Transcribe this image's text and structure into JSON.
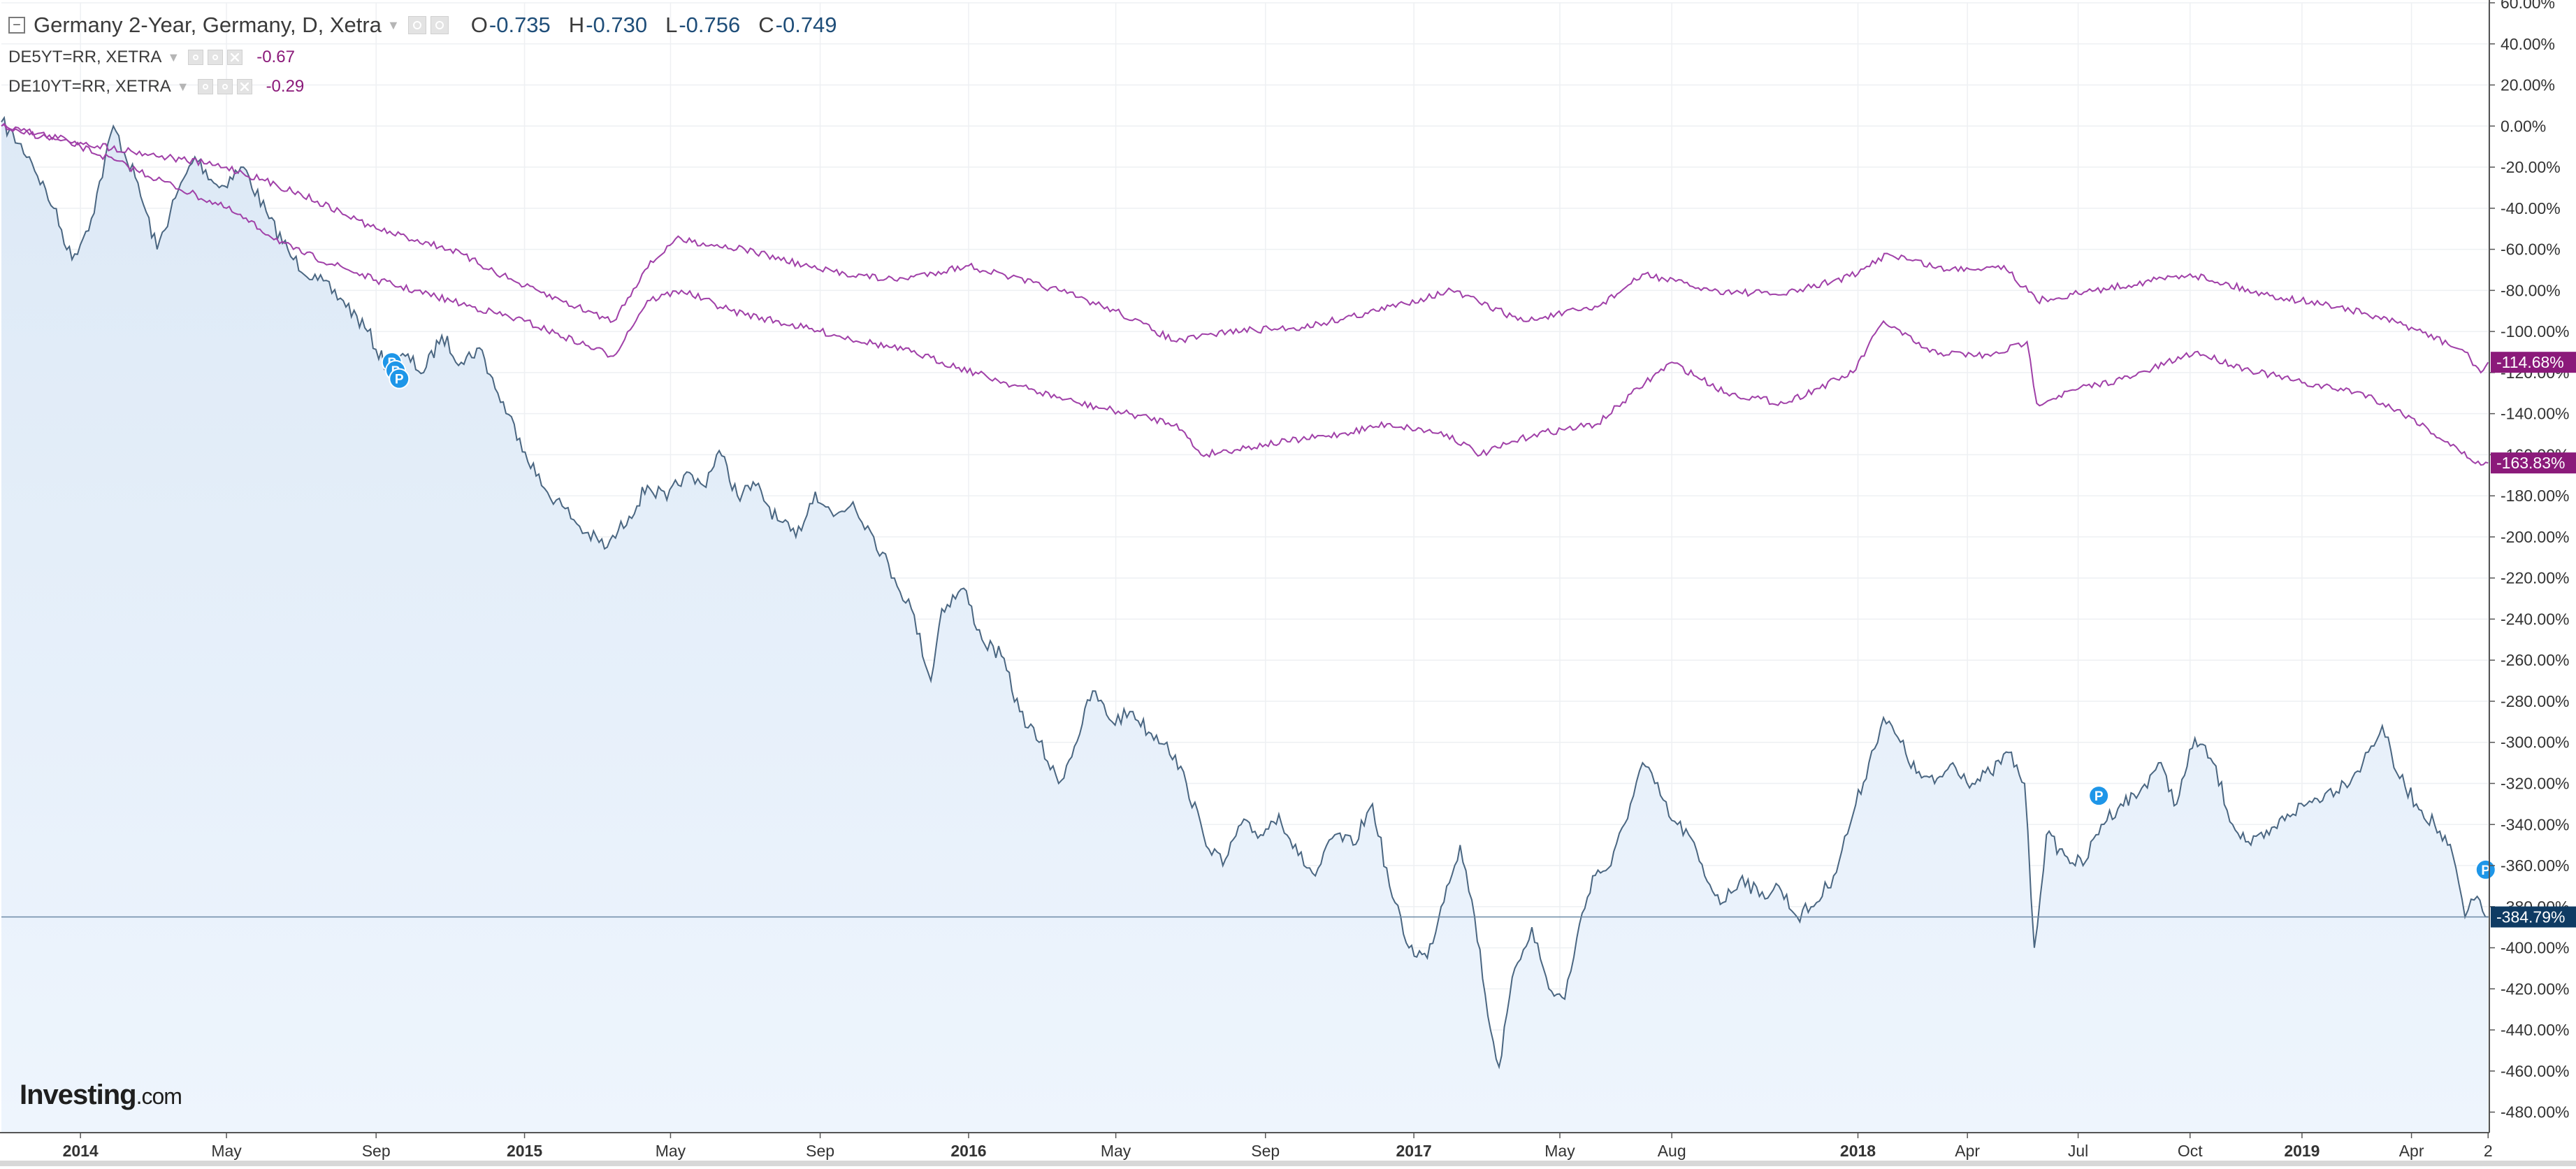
{
  "header": {
    "title": "Germany 2-Year, Germany, D, Xetra",
    "ohlc": [
      {
        "label": "O",
        "value": "-0.735"
      },
      {
        "label": "H",
        "value": "-0.730"
      },
      {
        "label": "L",
        "value": "-0.756"
      },
      {
        "label": "C",
        "value": "-0.749"
      }
    ]
  },
  "overlays": [
    {
      "name": "DE5YT=RR, XETRA",
      "value": "-0.67"
    },
    {
      "name": "DE10YT=RR, XETRA",
      "value": "-0.29"
    }
  ],
  "brand": {
    "name": "Investing",
    "suffix": ".com"
  },
  "colors": {
    "main": "#4a6681",
    "main_fill": "#dde9f6",
    "overlay": "#a040a8",
    "overlay_badge": "#8b1a7a",
    "main_badge": "#0f3b63",
    "marker": "#1e96e8"
  },
  "chart_data": {
    "type": "area",
    "xlabel": "",
    "ylabel": "",
    "ylim": [
      -490,
      60
    ],
    "yticks": [
      60,
      40,
      20,
      0,
      -20,
      -40,
      -60,
      -80,
      -100,
      -120,
      -140,
      -160,
      -180,
      -200,
      -220,
      -240,
      -260,
      -280,
      -300,
      -320,
      -340,
      -360,
      -380,
      -400,
      -420,
      -440,
      -460,
      -480
    ],
    "ytick_labels": [
      "60.00%",
      "40.00%",
      "20.00%",
      "0.00%",
      "-20.00%",
      "-40.00%",
      "-60.00%",
      "-80.00%",
      "-100.00%",
      "-120.00%",
      "-140.00%",
      "-160.00%",
      "-180.00%",
      "-200.00%",
      "-220.00%",
      "-240.00%",
      "-260.00%",
      "-280.00%",
      "-300.00%",
      "-320.00%",
      "-340.00%",
      "-360.00%",
      "-380.00%",
      "-400.00%",
      "-420.00%",
      "-440.00%",
      "-460.00%",
      "-480.00%"
    ],
    "x_range": [
      "2013-10-28",
      "2019-06-04"
    ],
    "xticks": [
      {
        "date": "2014-01-01",
        "label": "2014",
        "bold": true
      },
      {
        "date": "2014-05-01",
        "label": "May",
        "bold": false
      },
      {
        "date": "2014-09-01",
        "label": "Sep",
        "bold": false
      },
      {
        "date": "2015-01-01",
        "label": "2015",
        "bold": true
      },
      {
        "date": "2015-05-01",
        "label": "May",
        "bold": false
      },
      {
        "date": "2015-09-01",
        "label": "Sep",
        "bold": false
      },
      {
        "date": "2016-01-01",
        "label": "2016",
        "bold": true
      },
      {
        "date": "2016-05-01",
        "label": "May",
        "bold": false
      },
      {
        "date": "2016-09-01",
        "label": "Sep",
        "bold": false
      },
      {
        "date": "2017-01-01",
        "label": "2017",
        "bold": true
      },
      {
        "date": "2017-05-01",
        "label": "May",
        "bold": false
      },
      {
        "date": "2017-08-01",
        "label": "Aug",
        "bold": false
      },
      {
        "date": "2018-01-01",
        "label": "2018",
        "bold": true
      },
      {
        "date": "2018-04-01",
        "label": "Apr",
        "bold": false
      },
      {
        "date": "2018-07-01",
        "label": "Jul",
        "bold": false
      },
      {
        "date": "2018-10-01",
        "label": "Oct",
        "bold": false
      },
      {
        "date": "2019-01-01",
        "label": "2019",
        "bold": true
      },
      {
        "date": "2019-04-01",
        "label": "Apr",
        "bold": false
      },
      {
        "date": "2019-06-03",
        "label": "2",
        "bold": false
      }
    ],
    "grid": true,
    "series": [
      {
        "name": "Germany 2-Year, Germany, D, Xetra",
        "style": "area",
        "last_label": "-384.79%",
        "points": [
          [
            "2013-10-28",
            2
          ],
          [
            "2013-11-20",
            -15
          ],
          [
            "2013-12-10",
            -40
          ],
          [
            "2013-12-25",
            -65
          ],
          [
            "2014-01-10",
            -45
          ],
          [
            "2014-01-28",
            0
          ],
          [
            "2014-02-15",
            -25
          ],
          [
            "2014-03-05",
            -60
          ],
          [
            "2014-03-20",
            -35
          ],
          [
            "2014-04-05",
            -15
          ],
          [
            "2014-04-25",
            -30
          ],
          [
            "2014-05-15",
            -20
          ],
          [
            "2014-06-05",
            -45
          ],
          [
            "2014-06-25",
            -65
          ],
          [
            "2014-07-15",
            -75
          ],
          [
            "2014-08-05",
            -85
          ],
          [
            "2014-08-25",
            -100
          ],
          [
            "2014-09-10",
            -118
          ],
          [
            "2014-09-25",
            -112
          ],
          [
            "2014-10-10",
            -120
          ],
          [
            "2014-10-25",
            -102
          ],
          [
            "2014-11-10",
            -115
          ],
          [
            "2014-11-25",
            -108
          ],
          [
            "2014-12-10",
            -130
          ],
          [
            "2014-12-28",
            -152
          ],
          [
            "2015-01-15",
            -175
          ],
          [
            "2015-02-01",
            -185
          ],
          [
            "2015-02-20",
            -198
          ],
          [
            "2015-03-10",
            -205
          ],
          [
            "2015-03-28",
            -190
          ],
          [
            "2015-04-12",
            -175
          ],
          [
            "2015-04-28",
            -182
          ],
          [
            "2015-05-12",
            -170
          ],
          [
            "2015-05-28",
            -175
          ],
          [
            "2015-06-10",
            -158
          ],
          [
            "2015-06-25",
            -180
          ],
          [
            "2015-07-10",
            -175
          ],
          [
            "2015-07-28",
            -192
          ],
          [
            "2015-08-12",
            -200
          ],
          [
            "2015-08-28",
            -178
          ],
          [
            "2015-09-12",
            -190
          ],
          [
            "2015-09-28",
            -183
          ],
          [
            "2015-10-15",
            -200
          ],
          [
            "2015-11-01",
            -220
          ],
          [
            "2015-11-15",
            -235
          ],
          [
            "2015-12-01",
            -270
          ],
          [
            "2015-12-10",
            -235
          ],
          [
            "2015-12-28",
            -225
          ],
          [
            "2016-01-12",
            -250
          ],
          [
            "2016-01-28",
            -258
          ],
          [
            "2016-02-12",
            -285
          ],
          [
            "2016-02-28",
            -300
          ],
          [
            "2016-03-15",
            -320
          ],
          [
            "2016-03-28",
            -302
          ],
          [
            "2016-04-12",
            -275
          ],
          [
            "2016-04-28",
            -290
          ],
          [
            "2016-05-15",
            -285
          ],
          [
            "2016-05-28",
            -295
          ],
          [
            "2016-06-12",
            -300
          ],
          [
            "2016-06-28",
            -320
          ],
          [
            "2016-07-12",
            -345
          ],
          [
            "2016-07-28",
            -360
          ],
          [
            "2016-08-12",
            -340
          ],
          [
            "2016-08-28",
            -345
          ],
          [
            "2016-09-12",
            -335
          ],
          [
            "2016-09-28",
            -355
          ],
          [
            "2016-10-12",
            -365
          ],
          [
            "2016-10-28",
            -345
          ],
          [
            "2016-11-12",
            -350
          ],
          [
            "2016-11-28",
            -330
          ],
          [
            "2016-12-12",
            -370
          ],
          [
            "2016-12-28",
            -400
          ],
          [
            "2017-01-12",
            -405
          ],
          [
            "2017-01-28",
            -370
          ],
          [
            "2017-02-08",
            -350
          ],
          [
            "2017-02-20",
            -385
          ],
          [
            "2017-03-05",
            -440
          ],
          [
            "2017-03-12",
            -458
          ],
          [
            "2017-03-25",
            -410
          ],
          [
            "2017-04-08",
            -390
          ],
          [
            "2017-04-22",
            -420
          ],
          [
            "2017-05-05",
            -425
          ],
          [
            "2017-05-15",
            -395
          ],
          [
            "2017-05-28",
            -365
          ],
          [
            "2017-06-12",
            -360
          ],
          [
            "2017-06-28",
            -330
          ],
          [
            "2017-07-08",
            -310
          ],
          [
            "2017-07-18",
            -320
          ],
          [
            "2017-08-01",
            -338
          ],
          [
            "2017-08-15",
            -345
          ],
          [
            "2017-08-28",
            -365
          ],
          [
            "2017-09-12",
            -378
          ],
          [
            "2017-09-28",
            -365
          ],
          [
            "2017-10-12",
            -375
          ],
          [
            "2017-10-28",
            -370
          ],
          [
            "2017-11-12",
            -385
          ],
          [
            "2017-11-28",
            -378
          ],
          [
            "2017-12-12",
            -365
          ],
          [
            "2017-12-28",
            -335
          ],
          [
            "2018-01-10",
            -310
          ],
          [
            "2018-01-22",
            -288
          ],
          [
            "2018-02-05",
            -300
          ],
          [
            "2018-02-18",
            -315
          ],
          [
            "2018-03-05",
            -320
          ],
          [
            "2018-03-20",
            -310
          ],
          [
            "2018-04-05",
            -320
          ],
          [
            "2018-04-20",
            -315
          ],
          [
            "2018-05-05",
            -305
          ],
          [
            "2018-05-18",
            -320
          ],
          [
            "2018-05-26",
            -400
          ],
          [
            "2018-06-05",
            -345
          ],
          [
            "2018-06-20",
            -355
          ],
          [
            "2018-07-05",
            -360
          ],
          [
            "2018-07-20",
            -340
          ],
          [
            "2018-08-05",
            -330
          ],
          [
            "2018-08-20",
            -325
          ],
          [
            "2018-09-05",
            -310
          ],
          [
            "2018-09-20",
            -330
          ],
          [
            "2018-10-05",
            -298
          ],
          [
            "2018-10-20",
            -310
          ],
          [
            "2018-11-05",
            -340
          ],
          [
            "2018-11-20",
            -350
          ],
          [
            "2018-12-05",
            -345
          ],
          [
            "2018-12-20",
            -335
          ],
          [
            "2019-01-05",
            -330
          ],
          [
            "2019-01-20",
            -325
          ],
          [
            "2019-02-05",
            -320
          ],
          [
            "2019-02-20",
            -310
          ],
          [
            "2019-03-08",
            -292
          ],
          [
            "2019-03-20",
            -315
          ],
          [
            "2019-04-05",
            -330
          ],
          [
            "2019-04-20",
            -340
          ],
          [
            "2019-05-05",
            -355
          ],
          [
            "2019-05-15",
            -385
          ],
          [
            "2019-05-25",
            -375
          ],
          [
            "2019-06-03",
            -385
          ]
        ]
      },
      {
        "name": "DE5YT=RR, XETRA",
        "style": "line",
        "last_label": "-163.83%",
        "points": [
          [
            "2013-10-28",
            0
          ],
          [
            "2014-01-01",
            -10
          ],
          [
            "2014-05-01",
            -40
          ],
          [
            "2014-06-25",
            -60
          ],
          [
            "2014-09-01",
            -75
          ],
          [
            "2014-11-01",
            -85
          ],
          [
            "2015-01-01",
            -95
          ],
          [
            "2015-03-15",
            -112
          ],
          [
            "2015-04-12",
            -85
          ],
          [
            "2015-05-10",
            -80
          ],
          [
            "2015-06-20",
            -90
          ],
          [
            "2015-09-01",
            -100
          ],
          [
            "2015-11-15",
            -110
          ],
          [
            "2016-02-01",
            -125
          ],
          [
            "2016-04-01",
            -135
          ],
          [
            "2016-06-20",
            -145
          ],
          [
            "2016-07-10",
            -160
          ],
          [
            "2016-09-01",
            -155
          ],
          [
            "2016-11-01",
            -150
          ],
          [
            "2016-12-10",
            -145
          ],
          [
            "2017-01-28",
            -150
          ],
          [
            "2017-02-25",
            -160
          ],
          [
            "2017-04-10",
            -150
          ],
          [
            "2017-06-01",
            -145
          ],
          [
            "2017-07-10",
            -125
          ],
          [
            "2017-08-01",
            -115
          ],
          [
            "2017-09-15",
            -130
          ],
          [
            "2017-11-01",
            -135
          ],
          [
            "2017-12-28",
            -120
          ],
          [
            "2018-01-22",
            -95
          ],
          [
            "2018-03-01",
            -110
          ],
          [
            "2018-04-20",
            -112
          ],
          [
            "2018-05-20",
            -105
          ],
          [
            "2018-05-28",
            -135
          ],
          [
            "2018-07-01",
            -128
          ],
          [
            "2018-08-15",
            -122
          ],
          [
            "2018-10-05",
            -110
          ],
          [
            "2018-11-15",
            -118
          ],
          [
            "2019-01-01",
            -125
          ],
          [
            "2019-02-20",
            -130
          ],
          [
            "2019-04-01",
            -142
          ],
          [
            "2019-05-10",
            -158
          ],
          [
            "2019-05-28",
            -165
          ],
          [
            "2019-06-03",
            -164
          ]
        ]
      },
      {
        "name": "DE10YT=RR, XETRA",
        "style": "line",
        "last_label": "-114.68%",
        "points": [
          [
            "2013-10-28",
            0
          ],
          [
            "2014-01-01",
            -8
          ],
          [
            "2014-05-01",
            -20
          ],
          [
            "2014-07-01",
            -33
          ],
          [
            "2014-09-01",
            -50
          ],
          [
            "2014-11-01",
            -60
          ],
          [
            "2015-01-01",
            -78
          ],
          [
            "2015-03-15",
            -95
          ],
          [
            "2015-04-10",
            -70
          ],
          [
            "2015-05-05",
            -55
          ],
          [
            "2015-07-01",
            -60
          ],
          [
            "2015-09-01",
            -70
          ],
          [
            "2015-11-01",
            -75
          ],
          [
            "2016-01-01",
            -68
          ],
          [
            "2016-03-15",
            -80
          ],
          [
            "2016-05-01",
            -90
          ],
          [
            "2016-06-20",
            -105
          ],
          [
            "2016-08-01",
            -100
          ],
          [
            "2016-10-01",
            -98
          ],
          [
            "2016-12-01",
            -90
          ],
          [
            "2017-02-01",
            -80
          ],
          [
            "2017-04-01",
            -95
          ],
          [
            "2017-06-01",
            -88
          ],
          [
            "2017-07-10",
            -72
          ],
          [
            "2017-09-01",
            -80
          ],
          [
            "2017-11-01",
            -82
          ],
          [
            "2018-01-01",
            -72
          ],
          [
            "2018-01-25",
            -62
          ],
          [
            "2018-03-15",
            -70
          ],
          [
            "2018-05-01",
            -68
          ],
          [
            "2018-05-28",
            -85
          ],
          [
            "2018-07-15",
            -80
          ],
          [
            "2018-10-01",
            -72
          ],
          [
            "2018-12-01",
            -82
          ],
          [
            "2019-02-01",
            -88
          ],
          [
            "2019-04-01",
            -98
          ],
          [
            "2019-05-15",
            -110
          ],
          [
            "2019-05-28",
            -120
          ],
          [
            "2019-06-03",
            -115
          ]
        ]
      }
    ],
    "markers": [
      {
        "date": "2014-09-14",
        "value": -115,
        "label": "P"
      },
      {
        "date": "2014-09-17",
        "value": -119,
        "label": "P"
      },
      {
        "date": "2014-09-20",
        "value": -123,
        "label": "P"
      },
      {
        "date": "2018-07-18",
        "value": -326,
        "label": "P"
      },
      {
        "date": "2019-06-01",
        "value": -362,
        "label": "P"
      }
    ]
  }
}
